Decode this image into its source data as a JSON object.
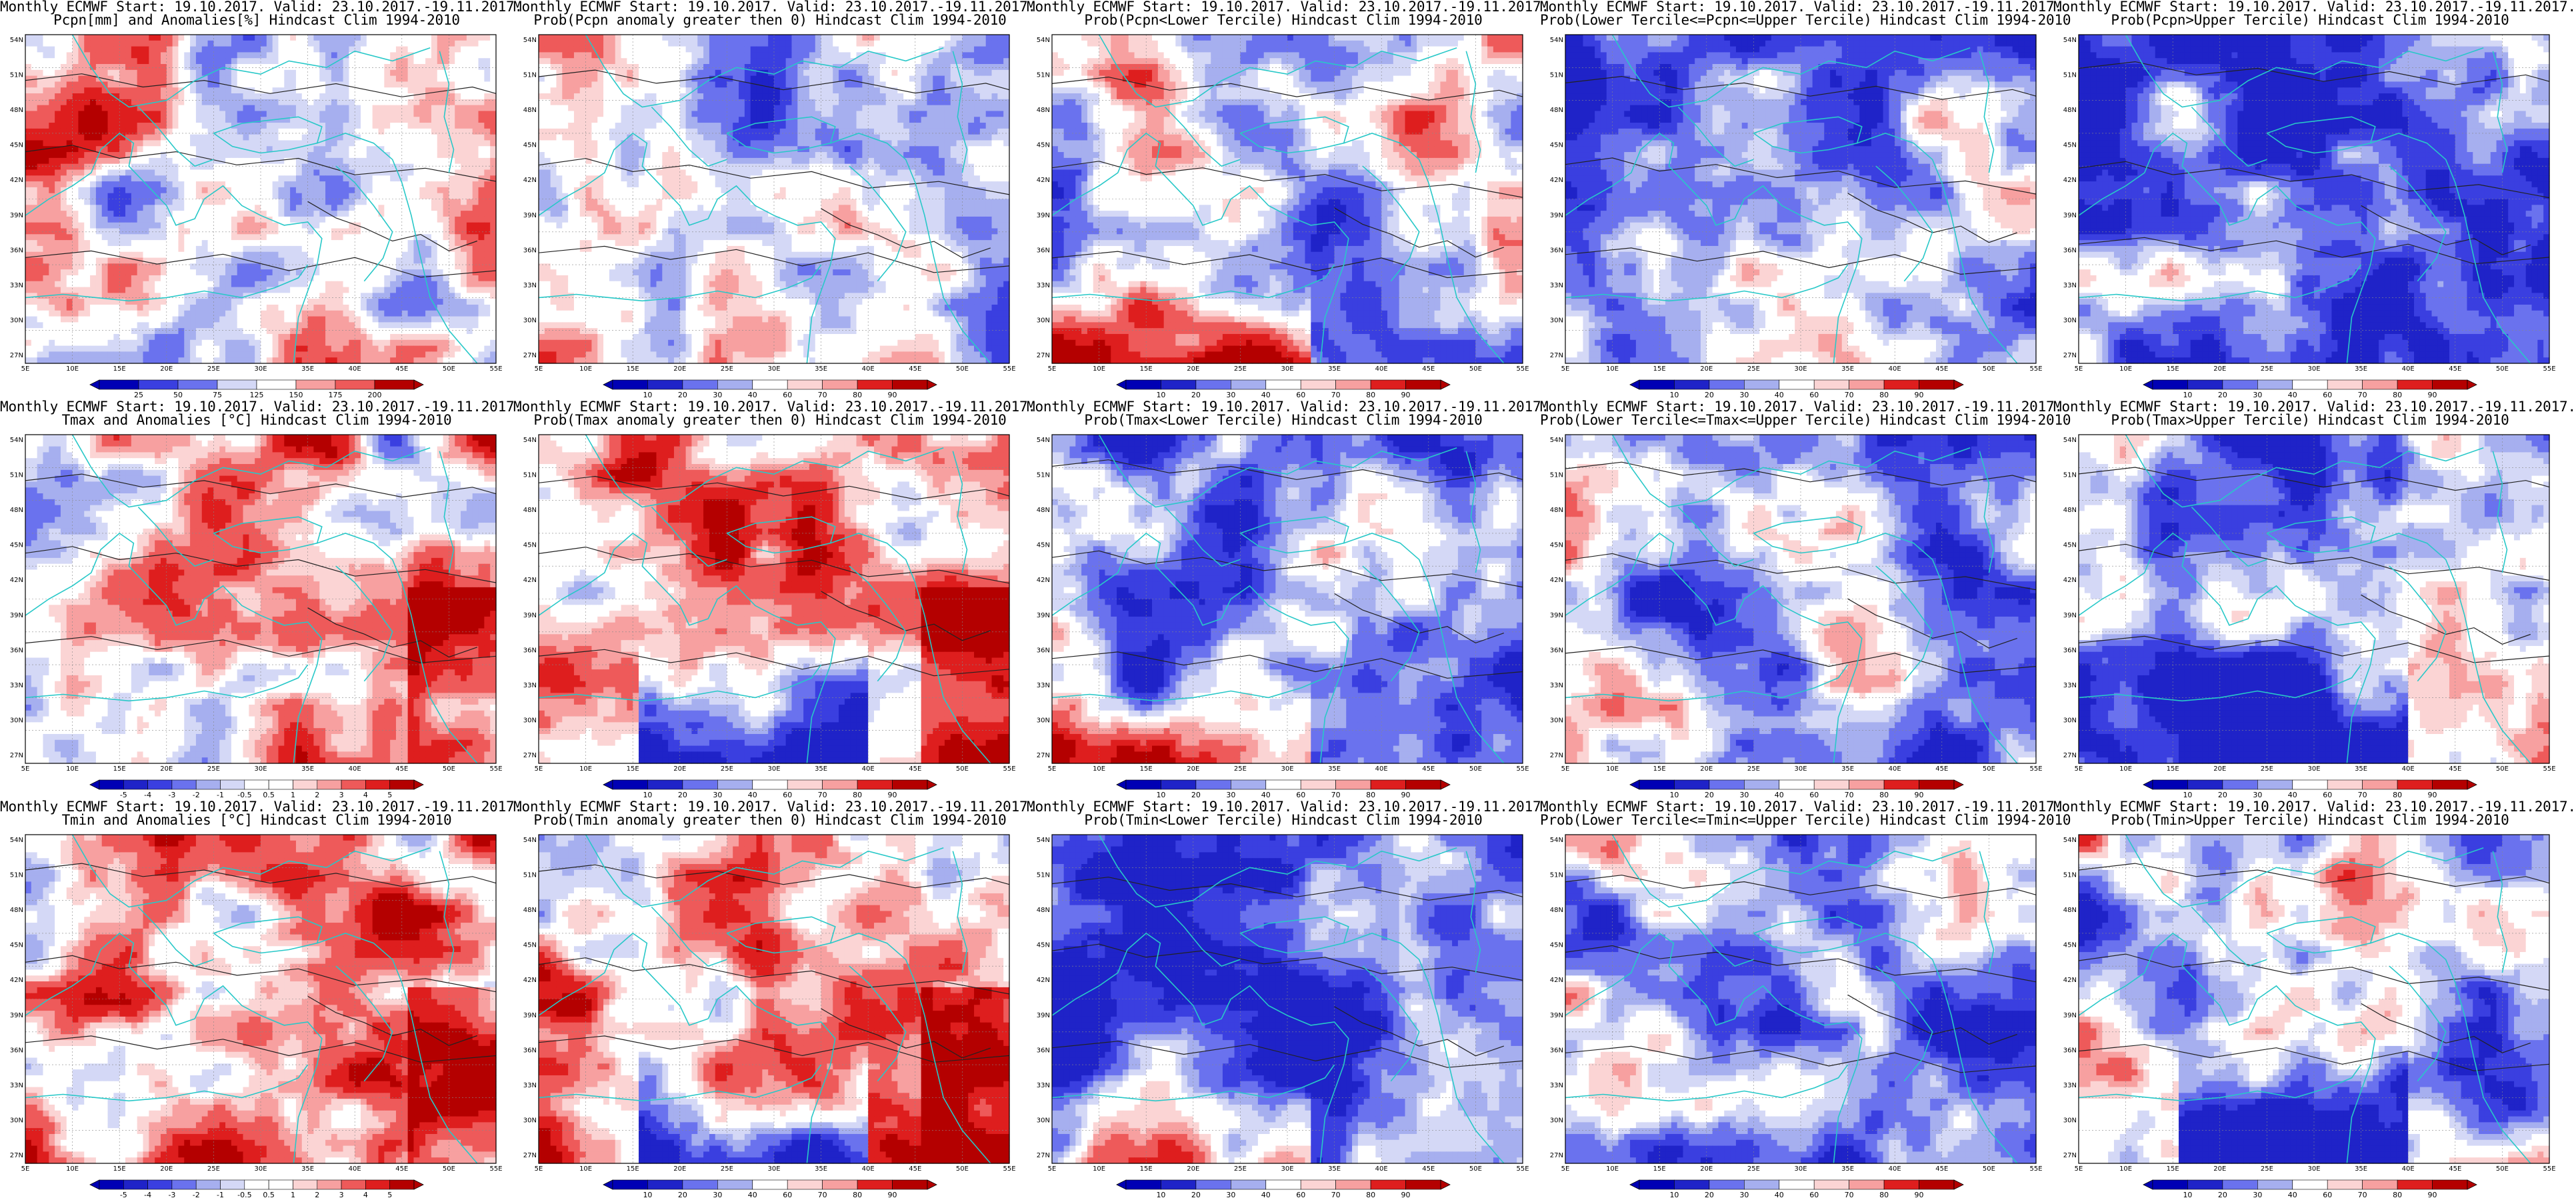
{
  "colorbar": {
    "pcpn_anom": [
      "25",
      "50",
      "75",
      "125",
      "150",
      "175",
      "200"
    ],
    "temp_anom": [
      "-5",
      "-4",
      "-3",
      "-2",
      "-1",
      "-0.5",
      "0.5",
      "1",
      "2",
      "3",
      "4",
      "5"
    ],
    "prob": [
      "10",
      "20",
      "30",
      "40",
      "60",
      "70",
      "80",
      "90"
    ]
  },
  "axes": {
    "lon_ticks": [
      "5E",
      "10E",
      "15E",
      "20E",
      "25E",
      "30E",
      "35E",
      "40E",
      "45E",
      "50E",
      "55E"
    ],
    "lat_ticks": [
      "54N",
      "51N",
      "48N",
      "45N",
      "42N",
      "39N",
      "36N",
      "33N",
      "30N",
      "27N"
    ]
  },
  "palette": {
    "blue": [
      "#1f23c8",
      "#3a3fe0",
      "#6a72ee",
      "#a6afef",
      "#d4d8f6"
    ],
    "red": [
      "#fbd4d4",
      "#f7a0a0",
      "#ee5a5a",
      "#de1e1e",
      "#b40000"
    ],
    "coast": "#28c8c8",
    "contour": "#222222"
  },
  "chart_data": [
    {
      "type": "heatmap",
      "row": 0,
      "col": 0,
      "field": "pcpn",
      "colorbar": "pcpn_anom",
      "title": "Monthly ECMWF Start: 19.10.2017. Valid: 23.10.2017.-19.11.2017.",
      "subtitle": "Pcpn[mm] and Anomalies[%] Hindcast Clim 1994-2010",
      "bias": 0.05
    },
    {
      "type": "heatmap",
      "row": 0,
      "col": 1,
      "field": "pcpn",
      "colorbar": "prob",
      "title": "Monthly ECMWF Start: 19.10.2017. Valid: 23.10.2017.-19.11.2017.",
      "subtitle": "Prob(Pcpn anomaly greater then 0) Hindcast Clim 1994-2010",
      "bias": -0.25
    },
    {
      "type": "heatmap",
      "row": 0,
      "col": 2,
      "field": "pcpn",
      "colorbar": "prob",
      "title": "Monthly ECMWF Start: 19.10.2017. Valid: 23.10.2017.-19.11.2017.",
      "subtitle": "Prob(Pcpn<Lower Tercile) Hindcast Clim 1994-2010",
      "bias": -0.15,
      "southRed": true
    },
    {
      "type": "heatmap",
      "row": 0,
      "col": 3,
      "field": "pcpn",
      "colorbar": "prob",
      "title": "Monthly ECMWF Start: 19.10.2017. Valid: 23.10.2017.-19.11.2017.",
      "subtitle": "Prob(Lower Tercile<=Pcpn<=Upper Tercile) Hindcast Clim 1994-2010",
      "bias": -0.35
    },
    {
      "type": "heatmap",
      "row": 0,
      "col": 4,
      "field": "pcpn",
      "colorbar": "prob",
      "title": "Monthly ECMWF Start: 19.10.2017. Valid: 23.10.2017.-19.11.2017.",
      "subtitle": "Prob(Pcpn>Upper Tercile) Hindcast Clim 1994-2010",
      "bias": -0.45
    },
    {
      "type": "heatmap",
      "row": 1,
      "col": 0,
      "field": "temp",
      "colorbar": "temp_anom",
      "title": "Monthly ECMWF Start: 19.10.2017. Valid: 23.10.2017.-19.11.2017.",
      "subtitle": "Tmax and Anomalies [°C] Hindcast Clim 1994-2010",
      "bias": 0.15
    },
    {
      "type": "heatmap",
      "row": 1,
      "col": 1,
      "field": "temp",
      "colorbar": "prob",
      "title": "Monthly ECMWF Start: 19.10.2017. Valid: 23.10.2017.-19.11.2017.",
      "subtitle": "Prob(Tmax anomaly greater then 0) Hindcast Clim 1994-2010",
      "bias": 0.2,
      "southBlue": true
    },
    {
      "type": "heatmap",
      "row": 1,
      "col": 2,
      "field": "temp",
      "colorbar": "prob",
      "title": "Monthly ECMWF Start: 19.10.2017. Valid: 23.10.2017.-19.11.2017.",
      "subtitle": "Prob(Tmax<Lower Tercile) Hindcast Clim 1994-2010",
      "bias": -0.55,
      "southRed": true
    },
    {
      "type": "heatmap",
      "row": 1,
      "col": 3,
      "field": "temp",
      "colorbar": "prob",
      "title": "Monthly ECMWF Start: 19.10.2017. Valid: 23.10.2017.-19.11.2017.",
      "subtitle": "Prob(Lower Tercile<=Tmax<=Upper Tercile) Hindcast Clim 1994-2010",
      "bias": -0.4
    },
    {
      "type": "heatmap",
      "row": 1,
      "col": 4,
      "field": "temp",
      "colorbar": "prob",
      "title": "Monthly ECMWF Start: 19.10.2017. Valid: 23.10.2017.-19.11.2017.",
      "subtitle": "Prob(Tmax>Upper Tercile) Hindcast Clim 1994-2010",
      "bias": -0.3,
      "southBlue": true
    },
    {
      "type": "heatmap",
      "row": 2,
      "col": 0,
      "field": "temp",
      "colorbar": "temp_anom",
      "title": "Monthly ECMWF Start: 19.10.2017. Valid: 23.10.2017.-19.11.2017.",
      "subtitle": "Tmin and Anomalies [°C] Hindcast Clim 1994-2010",
      "bias": 0.2
    },
    {
      "type": "heatmap",
      "row": 2,
      "col": 1,
      "field": "temp",
      "colorbar": "prob",
      "title": "Monthly ECMWF Start: 19.10.2017. Valid: 23.10.2017.-19.11.2017.",
      "subtitle": "Prob(Tmin anomaly greater then 0) Hindcast Clim 1994-2010",
      "bias": 0.35,
      "southBlue": true
    },
    {
      "type": "heatmap",
      "row": 2,
      "col": 2,
      "field": "temp",
      "colorbar": "prob",
      "title": "Monthly ECMWF Start: 19.10.2017. Valid: 23.10.2017.-19.11.2017.",
      "subtitle": "Prob(Tmin<Lower Tercile) Hindcast Clim 1994-2010",
      "bias": -0.6,
      "southRed": true
    },
    {
      "type": "heatmap",
      "row": 2,
      "col": 3,
      "field": "temp",
      "colorbar": "prob",
      "title": "Monthly ECMWF Start: 19.10.2017. Valid: 23.10.2017.-19.11.2017.",
      "subtitle": "Prob(Lower Tercile<=Tmin<=Upper Tercile) Hindcast Clim 1994-2010",
      "bias": -0.35
    },
    {
      "type": "heatmap",
      "row": 2,
      "col": 4,
      "field": "temp",
      "colorbar": "prob",
      "title": "Monthly ECMWF Start: 19.10.2017. Valid: 23.10.2017.-19.11.2017.",
      "subtitle": "Prob(Tmin>Upper Tercile) Hindcast Clim 1994-2010",
      "bias": -0.2,
      "southBlue": true
    }
  ]
}
